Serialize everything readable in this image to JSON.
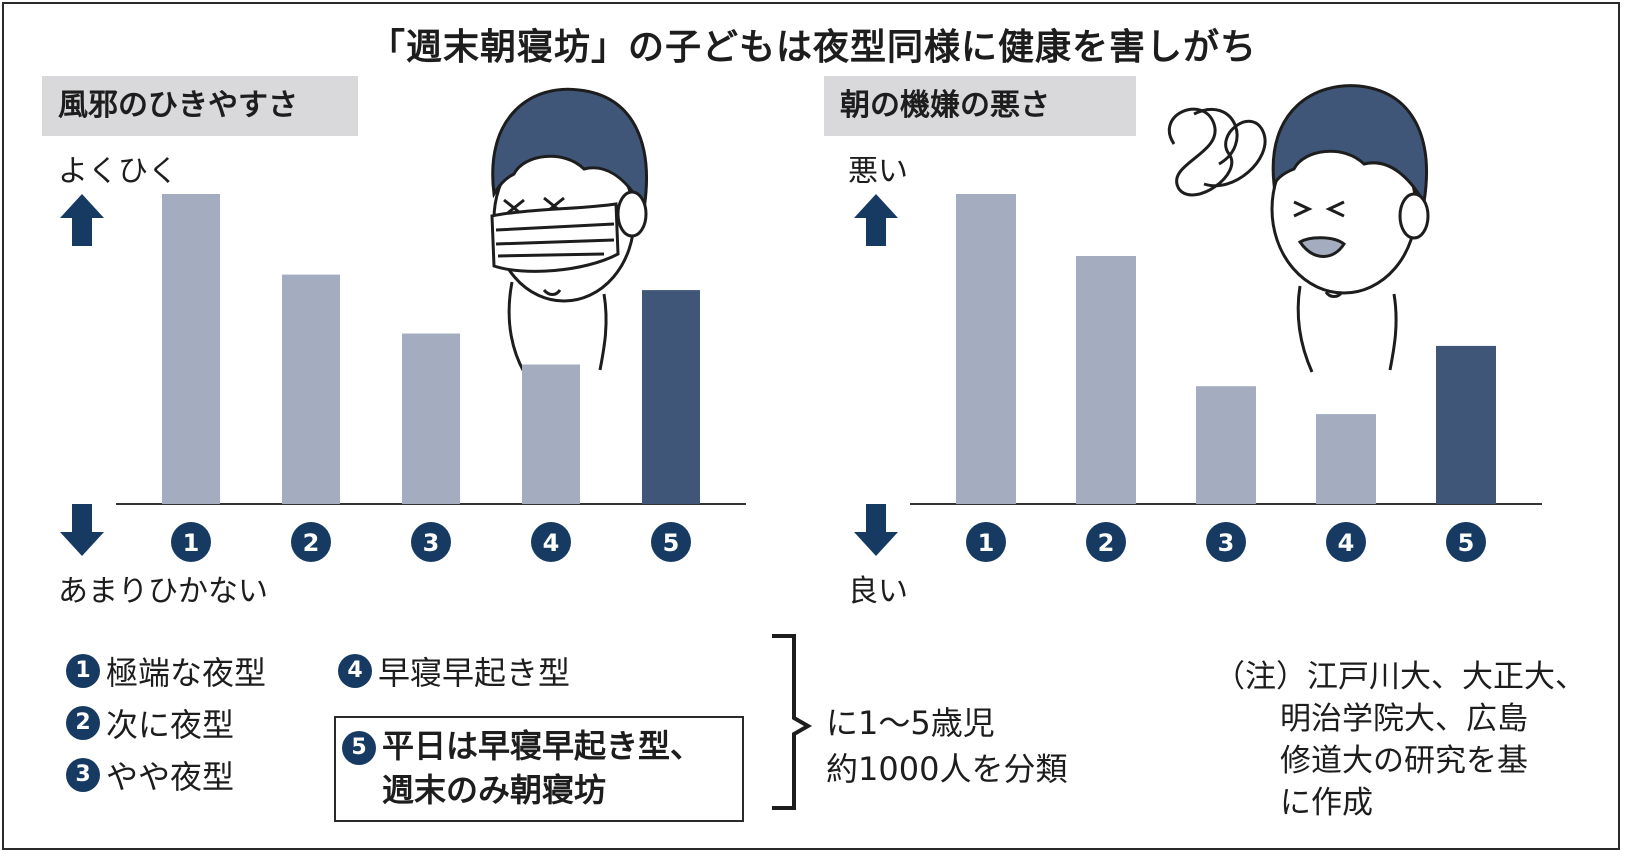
{
  "title": "「週末朝寝坊」の子どもは夜型同様に健康を害しがち",
  "colors": {
    "bar_light": "#a4adbf",
    "bar_dark": "#3f5679",
    "arrow": "#163a62",
    "badge": "#163a62",
    "label_bg": "#d9d9dc"
  },
  "chart_data": [
    {
      "type": "bar",
      "title": "風邪のひきやすさ",
      "categories": [
        "1",
        "2",
        "3",
        "4",
        "5"
      ],
      "values": [
        100,
        74,
        55,
        45,
        69
      ],
      "ylim": [
        0,
        100
      ],
      "y_top_label": "よくひく",
      "y_bottom_label": "あまりひかない",
      "highlight_index": 4,
      "grid": false
    },
    {
      "type": "bar",
      "title": "朝の機嫌の悪さ",
      "categories": [
        "1",
        "2",
        "3",
        "4",
        "5"
      ],
      "values": [
        100,
        80,
        38,
        29,
        51
      ],
      "ylim": [
        0,
        100
      ],
      "y_top_label": "悪い",
      "y_bottom_label": "良い",
      "highlight_index": 4,
      "grid": false
    }
  ],
  "legend": {
    "items": [
      {
        "num": "1",
        "label": "極端な夜型"
      },
      {
        "num": "2",
        "label": "次に夜型"
      },
      {
        "num": "3",
        "label": "やや夜型"
      },
      {
        "num": "4",
        "label": "早寝早起き型"
      }
    ],
    "item5": {
      "num": "5",
      "line1": "平日は早寝早起き型、",
      "line2": "週末のみ朝寝坊"
    },
    "bracket_line1": "に1〜5歳児",
    "bracket_line2": "約1000人を分類"
  },
  "note": {
    "line1": "（注）江戸川大、大正大、",
    "line2": "明治学院大、広島",
    "line3": "修道大の研究を基",
    "line4": "に作成"
  }
}
